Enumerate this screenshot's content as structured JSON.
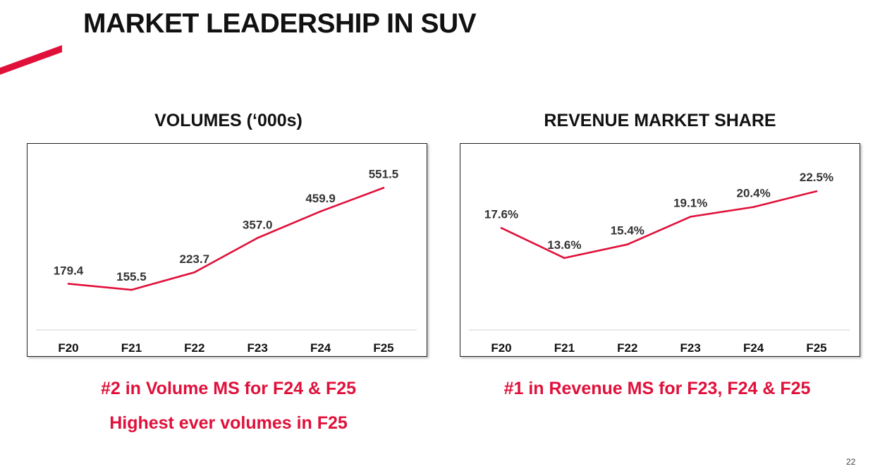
{
  "page": {
    "title": "MARKET LEADERSHIP IN SUV",
    "page_number": "22",
    "accent_color": "#e0103a"
  },
  "notes": {
    "volume_line1": "#2 in Volume MS for F24 & F25",
    "volume_line2": "Highest ever volumes in F25",
    "revenue_line1": "#1 in Revenue MS for F23, F24 & F25"
  },
  "chart_data": [
    {
      "type": "line",
      "title": "VOLUMES (‘000s)",
      "categories": [
        "F20",
        "F21",
        "F22",
        "F23",
        "F24",
        "F25"
      ],
      "values": [
        179.4,
        155.5,
        223.7,
        357.0,
        459.9,
        551.5
      ],
      "labels": [
        "179.4",
        "155.5",
        "223.7",
        "357.0",
        "459.9",
        "551.5"
      ],
      "ylim": [
        0,
        640
      ],
      "color": "#e0103a",
      "xlabel": "",
      "ylabel": ""
    },
    {
      "type": "line",
      "title": "REVENUE MARKET SHARE",
      "categories": [
        "F20",
        "F21",
        "F22",
        "F23",
        "F24",
        "F25"
      ],
      "values": [
        17.6,
        13.6,
        15.4,
        19.1,
        20.4,
        22.5
      ],
      "labels": [
        "17.6%",
        "13.6%",
        "15.4%",
        "19.1%",
        "20.4%",
        "22.5%"
      ],
      "ylim": [
        4,
        26
      ],
      "color": "#e0103a",
      "xlabel": "",
      "ylabel": ""
    }
  ]
}
